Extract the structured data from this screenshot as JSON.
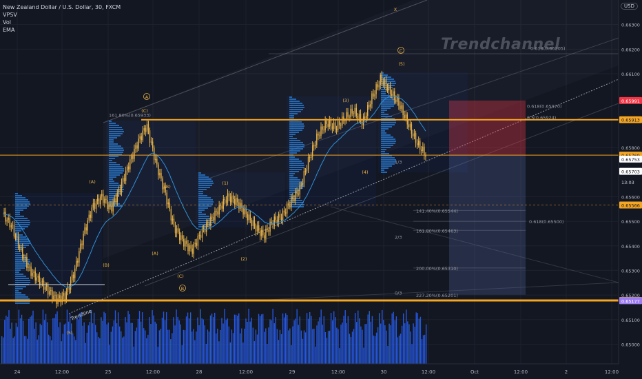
{
  "header": {
    "symbol_line": "New Zealand Dollar / U.S. Dollar, 30, FXCM",
    "indicators": [
      "VPSV",
      "Vol",
      "EMA"
    ],
    "currency_button": "USD"
  },
  "watermark": "Trendchannel",
  "colors": {
    "background": "#131722",
    "candle": "#e8b349",
    "ema": "#2f8fd8",
    "volume": "#2962ff",
    "orange_line": "#f5a623",
    "red_zone": "#f23645",
    "blue_zone": "#5b6aa8",
    "grid": "#1e222d"
  },
  "price_axis": {
    "min": 0.6492,
    "max": 0.664,
    "ticks": [
      "0.66300",
      "0.66200",
      "0.66100",
      "0.65800",
      "0.65600",
      "0.65500",
      "0.65400",
      "0.65300",
      "0.65200",
      "0.65100",
      "0.65000"
    ],
    "badges": [
      {
        "label": "0.65991",
        "price": 0.65991,
        "bg": "#f23645",
        "fg": "#ffffff"
      },
      {
        "label": "0.65913",
        "price": 0.65913,
        "bg": "#f5a623",
        "fg": "#131722"
      },
      {
        "label": "0.65769",
        "price": 0.65769,
        "bg": "#f5a623",
        "fg": "#131722"
      },
      {
        "label": "0.65753",
        "price": 0.65753,
        "bg": "#ffffff",
        "fg": "#131722"
      },
      {
        "label": "0.65703",
        "price": 0.65703,
        "bg": "#ffffff",
        "fg": "#131722"
      },
      {
        "label": "13:03",
        "price": 0.6566,
        "bg": "#131722",
        "fg": "#d1d4dc"
      },
      {
        "label": "0.65566",
        "price": 0.65566,
        "bg": "#f5a623",
        "fg": "#131722"
      },
      {
        "label": "0.65178",
        "price": 0.65178,
        "bg": "#f5a623",
        "fg": "#131722"
      },
      {
        "label": "0.65177",
        "price": 0.65177,
        "bg": "#9c7cf0",
        "fg": "#ffffff"
      }
    ]
  },
  "time_axis": [
    "24",
    "12:00",
    "25",
    "12:00",
    "28",
    "12:00",
    "29",
    "12:00",
    "30",
    "12:00",
    "Oct",
    "12:00",
    "2",
    "12:00"
  ],
  "fib_labels": [
    {
      "text": "0.618(0.66205)",
      "price": 0.66205
    },
    {
      "text": "0.618(0.65970)",
      "price": 0.6597
    },
    {
      "text": "0.5(0.65924)",
      "price": 0.65924
    },
    {
      "text": "161.80%(0.65933)",
      "price": 0.65933
    },
    {
      "text": "141.40%(0.65544)",
      "price": 0.65544
    },
    {
      "text": "0.618(0.65500)",
      "price": 0.655
    },
    {
      "text": "161.80%(0.65463)",
      "price": 0.65463
    },
    {
      "text": "200.00%(0.65310)",
      "price": 0.6531
    },
    {
      "text": "227.20%(0.65201)",
      "price": 0.65201
    },
    {
      "text": "2/3",
      "price": 0.65437
    },
    {
      "text": "1/3",
      "price": 0.65742
    },
    {
      "text": "0/3",
      "price": 0.6521
    }
  ],
  "wave_labels": [
    "(A)",
    "(B)",
    "(C)",
    "(A)",
    "(B)",
    "(C)",
    "(1)",
    "(2)",
    "(3)",
    "(4)",
    "(5)",
    "(5)",
    "A",
    "B",
    "C",
    "X"
  ],
  "trendline_label": "Trendline",
  "chart_data": {
    "type": "candlestick",
    "symbol": "NZD/USD",
    "timeframe": "30",
    "sessions": [
      "24",
      "25",
      "28",
      "29",
      "30"
    ],
    "approx_close_path": [
      0.6553,
      0.6548,
      0.6538,
      0.653,
      0.6526,
      0.6522,
      0.6518,
      0.652,
      0.653,
      0.6545,
      0.6556,
      0.656,
      0.6555,
      0.6563,
      0.6573,
      0.6582,
      0.6589,
      0.6574,
      0.6562,
      0.6548,
      0.6542,
      0.6538,
      0.6545,
      0.655,
      0.6555,
      0.656,
      0.6558,
      0.6553,
      0.6548,
      0.6544,
      0.655,
      0.6552,
      0.6558,
      0.6563,
      0.6575,
      0.6585,
      0.659,
      0.6588,
      0.6592,
      0.6595,
      0.659,
      0.66,
      0.6608,
      0.6603,
      0.6598,
      0.659,
      0.6582,
      0.6577
    ],
    "horizontal_levels": [
      0.65913,
      0.65769,
      0.65566,
      0.65178
    ],
    "last_price": 0.65703,
    "ylim": [
      0.6492,
      0.664
    ]
  }
}
